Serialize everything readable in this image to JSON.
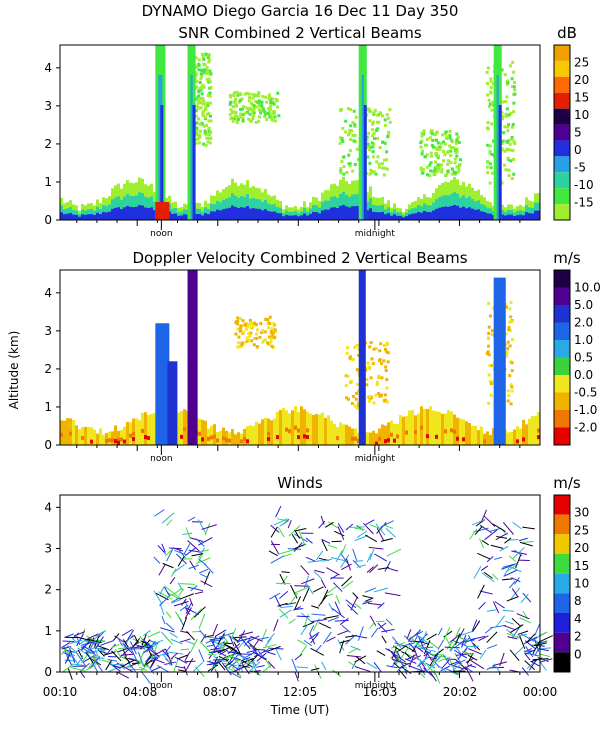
{
  "header": {
    "line1": "DYNAMO Diego Garcia  16 Dec 11 Day 350"
  },
  "chart_data": [
    {
      "type": "heatmap",
      "title": "SNR Combined 2 Vertical Beams",
      "ylim": [
        0,
        4.6
      ],
      "y_ticks": [
        "0",
        "1",
        "2",
        "3",
        "4"
      ],
      "markers": [
        "noon",
        "midnight"
      ],
      "colorbar": {
        "unit": "dB",
        "labels": [
          "25",
          "20",
          "15",
          "10",
          "5",
          "0",
          "-5",
          "-10",
          "-15"
        ],
        "colors": [
          "#f0a000",
          "#f8c800",
          "#ff6a00",
          "#e61e00",
          "#1e0046",
          "#500090",
          "#2030dc",
          "#28a0e6",
          "#2ed2a0",
          "#40e840",
          "#a0ee30"
        ]
      },
      "features": [
        {
          "label": "boundary layer echo",
          "x_range": [
            "00:10",
            "24:00"
          ],
          "alt_range": [
            0,
            1
          ]
        },
        {
          "label": "deep convection",
          "time": "05:00",
          "alt_range": [
            0,
            4.6
          ]
        },
        {
          "label": "deep convection",
          "time": "06:40",
          "alt_range": [
            0,
            4.6
          ]
        },
        {
          "label": "deep convection",
          "time": "15:10",
          "alt_range": [
            0,
            4.6
          ]
        },
        {
          "label": "deep convection",
          "time": "21:50",
          "alt_range": [
            0,
            4.6
          ]
        }
      ]
    },
    {
      "type": "heatmap",
      "title": "Doppler Velocity Combined 2 Vertical Beams",
      "ylabel": "Altitude (km)",
      "ylim": [
        0,
        4.6
      ],
      "y_ticks": [
        "0",
        "1",
        "2",
        "3",
        "4"
      ],
      "markers": [
        "noon",
        "midnight"
      ],
      "colorbar": {
        "unit": "m/s",
        "labels": [
          "10.0",
          "5.0",
          "2.0",
          "1.0",
          "0.5",
          "0.0",
          "-0.5",
          "-1.0",
          "-2.0"
        ],
        "colors": [
          "#1e0046",
          "#500090",
          "#1e32d2",
          "#1e64e6",
          "#28aae6",
          "#3cd23c",
          "#f0e61e",
          "#f0b400",
          "#f07800",
          "#e60000"
        ]
      }
    },
    {
      "type": "scatter",
      "title": "Winds",
      "xlabel": "Time (UT)",
      "x_ticks": [
        "00:10",
        "04:08",
        "08:07",
        "12:05",
        "16:03",
        "20:02",
        "00:00"
      ],
      "ylim": [
        0,
        4.3
      ],
      "y_ticks": [
        "0",
        "1",
        "2",
        "3",
        "4"
      ],
      "markers": [
        "noon",
        "midnight"
      ],
      "colorbar": {
        "unit": "m/s",
        "labels": [
          "30",
          "25",
          "20",
          "15",
          "10",
          "8",
          "4",
          "2",
          "0"
        ],
        "colors": [
          "#e60000",
          "#f07800",
          "#f0c800",
          "#3cdc3c",
          "#28aae6",
          "#1e64e6",
          "#1e1edc",
          "#500090",
          "#000000"
        ]
      }
    }
  ]
}
